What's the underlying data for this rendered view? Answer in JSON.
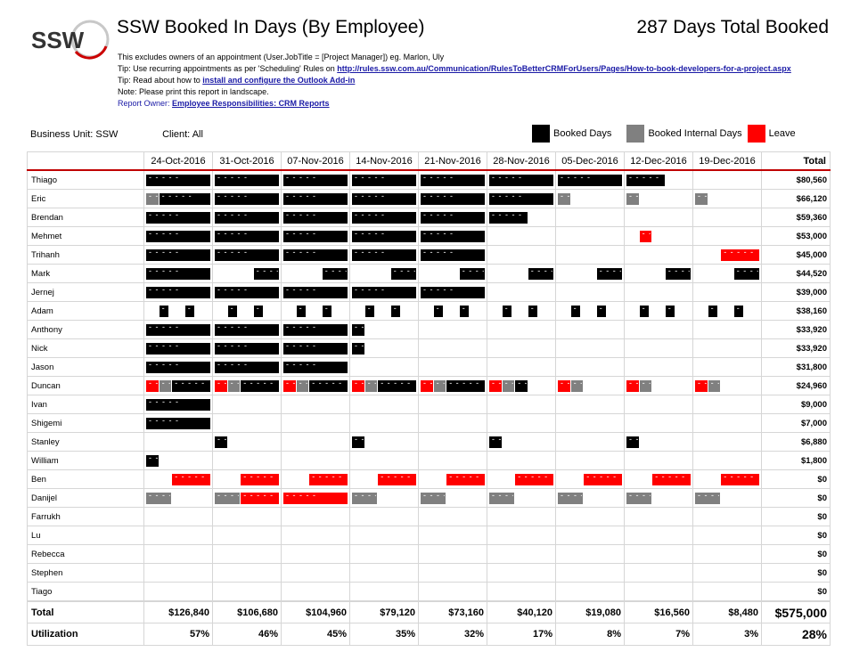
{
  "header": {
    "title": "SSW Booked In Days (By Employee)",
    "total_booked": "287 Days Total Booked",
    "logo_text": "SSW"
  },
  "notes": {
    "line1": "This excludes owners of an appointment (User.JobTitle = [Project Manager]) eg. Marlon, Uly",
    "line2_prefix": "Tip: Use recurring appointments as per 'Scheduling' Rules on ",
    "line2_link": "http://rules.ssw.com.au/Communication/RulesToBetterCRMForUsers/Pages/How-to-book-developers-for-a-project.aspx",
    "line3_prefix": "Tip: Read about how to ",
    "line3_link": "install and configure the Outlook Add-in",
    "line4": "Note: Please print this report in landscape.",
    "line5_prefix": "Report Owner: ",
    "line5_link": "Employee Responsibilities: CRM Reports"
  },
  "filters": {
    "business_unit": "Business Unit: SSW",
    "client": "Client: All"
  },
  "legend": {
    "booked": {
      "label": "Booked Days",
      "color": "#000000"
    },
    "internal": {
      "label": "Booked Internal Days",
      "color": "#808080"
    },
    "leave": {
      "label": "Leave",
      "color": "#ff0000"
    }
  },
  "columns": [
    "24-Oct-2016",
    "31-Oct-2016",
    "07-Nov-2016",
    "14-Nov-2016",
    "21-Nov-2016",
    "28-Nov-2016",
    "05-Dec-2016",
    "12-Dec-2016",
    "19-Dec-2016"
  ],
  "total_header": "Total",
  "employees": [
    {
      "name": "Thiago",
      "total": "$80,560",
      "weeks": [
        [
          [
            "b",
            0,
            5
          ]
        ],
        [
          [
            "b",
            0,
            5
          ]
        ],
        [
          [
            "b",
            0,
            5
          ]
        ],
        [
          [
            "b",
            0,
            5
          ]
        ],
        [
          [
            "b",
            0,
            5
          ]
        ],
        [
          [
            "b",
            0,
            5
          ]
        ],
        [
          [
            "b",
            0,
            5
          ]
        ],
        [
          [
            "b",
            0,
            3
          ]
        ],
        []
      ]
    },
    {
      "name": "Eric",
      "total": "$66,120",
      "weeks": [
        [
          [
            "i",
            0,
            1
          ],
          [
            "b",
            1,
            4
          ]
        ],
        [
          [
            "b",
            0,
            5
          ]
        ],
        [
          [
            "b",
            0,
            5
          ]
        ],
        [
          [
            "b",
            0,
            5
          ]
        ],
        [
          [
            "b",
            0,
            5
          ]
        ],
        [
          [
            "b",
            0,
            5
          ]
        ],
        [
          [
            "i",
            0,
            1
          ]
        ],
        [
          [
            "i",
            0,
            1
          ]
        ],
        [
          [
            "i",
            0,
            1
          ]
        ]
      ]
    },
    {
      "name": "Brendan",
      "total": "$59,360",
      "weeks": [
        [
          [
            "b",
            0,
            5
          ]
        ],
        [
          [
            "b",
            0,
            5
          ]
        ],
        [
          [
            "b",
            0,
            5
          ]
        ],
        [
          [
            "b",
            0,
            5
          ]
        ],
        [
          [
            "b",
            0,
            5
          ]
        ],
        [
          [
            "b",
            0,
            3
          ]
        ],
        [],
        [],
        []
      ]
    },
    {
      "name": "Mehmet",
      "total": "$53,000",
      "weeks": [
        [
          [
            "b",
            0,
            5
          ]
        ],
        [
          [
            "b",
            0,
            5
          ]
        ],
        [
          [
            "b",
            0,
            5
          ]
        ],
        [
          [
            "b",
            0,
            5
          ]
        ],
        [
          [
            "b",
            0,
            5
          ]
        ],
        [],
        [],
        [
          [
            "l",
            1,
            1
          ]
        ],
        []
      ]
    },
    {
      "name": "Trihanh",
      "total": "$45,000",
      "weeks": [
        [
          [
            "b",
            0,
            5
          ]
        ],
        [
          [
            "b",
            0,
            5
          ]
        ],
        [
          [
            "b",
            0,
            5
          ]
        ],
        [
          [
            "b",
            0,
            5
          ]
        ],
        [
          [
            "b",
            0,
            5
          ]
        ],
        [],
        [],
        [],
        [
          [
            "l",
            2,
            3
          ]
        ]
      ]
    },
    {
      "name": "Mark",
      "total": "$44,520",
      "weeks": [
        [
          [
            "b",
            0,
            5
          ]
        ],
        [
          [
            "b",
            3,
            2
          ]
        ],
        [
          [
            "b",
            3,
            2
          ]
        ],
        [
          [
            "b",
            3,
            2
          ]
        ],
        [
          [
            "b",
            3,
            2
          ]
        ],
        [
          [
            "b",
            3,
            2
          ]
        ],
        [
          [
            "b",
            3,
            2
          ]
        ],
        [
          [
            "b",
            3,
            2
          ]
        ],
        [
          [
            "b",
            3,
            2
          ]
        ]
      ]
    },
    {
      "name": "Jernej",
      "total": "$39,000",
      "weeks": [
        [
          [
            "b",
            0,
            5
          ]
        ],
        [
          [
            "b",
            0,
            5
          ]
        ],
        [
          [
            "b",
            0,
            5
          ]
        ],
        [
          [
            "b",
            0,
            5
          ]
        ],
        [
          [
            "b",
            0,
            5
          ]
        ],
        [],
        [],
        [],
        []
      ]
    },
    {
      "name": "Adam",
      "total": "$38,160",
      "weeks": [
        [
          [
            "b",
            1,
            0.7
          ],
          [
            "b",
            3,
            0.7
          ]
        ],
        [
          [
            "b",
            1,
            0.7
          ],
          [
            "b",
            3,
            0.7
          ]
        ],
        [
          [
            "b",
            1,
            0.7
          ],
          [
            "b",
            3,
            0.7
          ]
        ],
        [
          [
            "b",
            1,
            0.7
          ],
          [
            "b",
            3,
            0.7
          ]
        ],
        [
          [
            "b",
            1,
            0.7
          ],
          [
            "b",
            3,
            0.7
          ]
        ],
        [
          [
            "b",
            1,
            0.7
          ],
          [
            "b",
            3,
            0.7
          ]
        ],
        [
          [
            "b",
            1,
            0.7
          ],
          [
            "b",
            3,
            0.7
          ]
        ],
        [
          [
            "b",
            1,
            0.7
          ],
          [
            "b",
            3,
            0.7
          ]
        ],
        [
          [
            "b",
            1,
            0.7
          ],
          [
            "b",
            3,
            0.7
          ]
        ]
      ]
    },
    {
      "name": "Anthony",
      "total": "$33,920",
      "weeks": [
        [
          [
            "b",
            0,
            5
          ]
        ],
        [
          [
            "b",
            0,
            5
          ]
        ],
        [
          [
            "b",
            0,
            5
          ]
        ],
        [
          [
            "b",
            0,
            1
          ]
        ],
        [],
        [],
        [],
        [],
        []
      ]
    },
    {
      "name": "Nick",
      "total": "$33,920",
      "weeks": [
        [
          [
            "b",
            0,
            5
          ]
        ],
        [
          [
            "b",
            0,
            5
          ]
        ],
        [
          [
            "b",
            0,
            5
          ]
        ],
        [
          [
            "b",
            0,
            1
          ]
        ],
        [],
        [],
        [],
        [],
        []
      ]
    },
    {
      "name": "Jason",
      "total": "$31,800",
      "weeks": [
        [
          [
            "b",
            0,
            5
          ]
        ],
        [
          [
            "b",
            0,
            5
          ]
        ],
        [
          [
            "b",
            0,
            5
          ]
        ],
        [],
        [],
        [],
        [],
        [],
        []
      ]
    },
    {
      "name": "Duncan",
      "total": "$24,960",
      "weeks": [
        [
          [
            "l",
            0,
            1
          ],
          [
            "i",
            1,
            1
          ],
          [
            "b",
            2,
            3
          ]
        ],
        [
          [
            "l",
            0,
            1
          ],
          [
            "i",
            1,
            1
          ],
          [
            "b",
            2,
            3
          ]
        ],
        [
          [
            "l",
            0,
            1
          ],
          [
            "i",
            1,
            1
          ],
          [
            "b",
            2,
            3
          ]
        ],
        [
          [
            "l",
            0,
            1
          ],
          [
            "i",
            1,
            1
          ],
          [
            "b",
            2,
            3
          ]
        ],
        [
          [
            "l",
            0,
            1
          ],
          [
            "i",
            1,
            1
          ],
          [
            "b",
            2,
            3
          ]
        ],
        [
          [
            "l",
            0,
            1
          ],
          [
            "i",
            1,
            1
          ],
          [
            "b",
            2,
            1
          ]
        ],
        [
          [
            "l",
            0,
            1
          ],
          [
            "i",
            1,
            1
          ]
        ],
        [
          [
            "l",
            0,
            1
          ],
          [
            "i",
            1,
            1
          ]
        ],
        [
          [
            "l",
            0,
            1
          ],
          [
            "i",
            1,
            1
          ]
        ]
      ]
    },
    {
      "name": "Ivan",
      "total": "$9,000",
      "weeks": [
        [
          [
            "b",
            0,
            5
          ]
        ],
        [],
        [],
        [],
        [],
        [],
        [],
        [],
        []
      ]
    },
    {
      "name": "Shigemi",
      "total": "$7,000",
      "weeks": [
        [
          [
            "b",
            0,
            5
          ]
        ],
        [],
        [],
        [],
        [],
        [],
        [],
        [],
        []
      ]
    },
    {
      "name": "Stanley",
      "total": "$6,880",
      "weeks": [
        [],
        [
          [
            "b",
            0,
            1
          ]
        ],
        [],
        [
          [
            "b",
            0,
            1
          ]
        ],
        [],
        [
          [
            "b",
            0,
            1
          ]
        ],
        [],
        [
          [
            "b",
            0,
            1
          ]
        ],
        []
      ]
    },
    {
      "name": "William",
      "total": "$1,800",
      "weeks": [
        [
          [
            "b",
            0,
            1
          ]
        ],
        [],
        [],
        [],
        [],
        [],
        [],
        [],
        []
      ]
    },
    {
      "name": "Ben",
      "total": "$0",
      "weeks": [
        [
          [
            "l",
            2,
            3
          ]
        ],
        [
          [
            "l",
            2,
            3
          ]
        ],
        [
          [
            "l",
            2,
            3
          ]
        ],
        [
          [
            "l",
            2,
            3
          ]
        ],
        [
          [
            "l",
            2,
            3
          ]
        ],
        [
          [
            "l",
            2,
            3
          ]
        ],
        [
          [
            "l",
            2,
            3
          ]
        ],
        [
          [
            "l",
            2,
            3
          ]
        ],
        [
          [
            "l",
            2,
            3
          ]
        ]
      ]
    },
    {
      "name": "Danijel",
      "total": "$0",
      "weeks": [
        [
          [
            "i",
            0,
            2
          ]
        ],
        [
          [
            "i",
            0,
            2
          ],
          [
            "l",
            2,
            3
          ]
        ],
        [
          [
            "l",
            0,
            5
          ]
        ],
        [
          [
            "i",
            0,
            2
          ]
        ],
        [
          [
            "i",
            0,
            2
          ]
        ],
        [
          [
            "i",
            0,
            2
          ]
        ],
        [
          [
            "i",
            0,
            2
          ]
        ],
        [
          [
            "i",
            0,
            2
          ]
        ],
        [
          [
            "i",
            0,
            2
          ]
        ]
      ]
    },
    {
      "name": "Farrukh",
      "total": "$0",
      "weeks": [
        [],
        [],
        [],
        [],
        [],
        [],
        [],
        [],
        []
      ]
    },
    {
      "name": "Lu",
      "total": "$0",
      "weeks": [
        [],
        [],
        [],
        [],
        [],
        [],
        [],
        [],
        []
      ]
    },
    {
      "name": "Rebecca",
      "total": "$0",
      "weeks": [
        [],
        [],
        [],
        [],
        [],
        [],
        [],
        [],
        []
      ]
    },
    {
      "name": "Stephen",
      "total": "$0",
      "weeks": [
        [],
        [],
        [],
        [],
        [],
        [],
        [],
        [],
        []
      ]
    },
    {
      "name": "Tiago",
      "total": "$0",
      "weeks": [
        [],
        [],
        [],
        [],
        [],
        [],
        [],
        [],
        []
      ]
    }
  ],
  "footer": {
    "total_label": "Total",
    "totals": [
      "$126,840",
      "$106,680",
      "$104,960",
      "$79,120",
      "$73,160",
      "$40,120",
      "$19,080",
      "$16,560",
      "$8,480"
    ],
    "grand_total": "$575,000",
    "util_label": "Utilization",
    "utilization": [
      "57%",
      "46%",
      "45%",
      "35%",
      "32%",
      "17%",
      "8%",
      "7%",
      "3%"
    ],
    "util_total": "28%"
  }
}
